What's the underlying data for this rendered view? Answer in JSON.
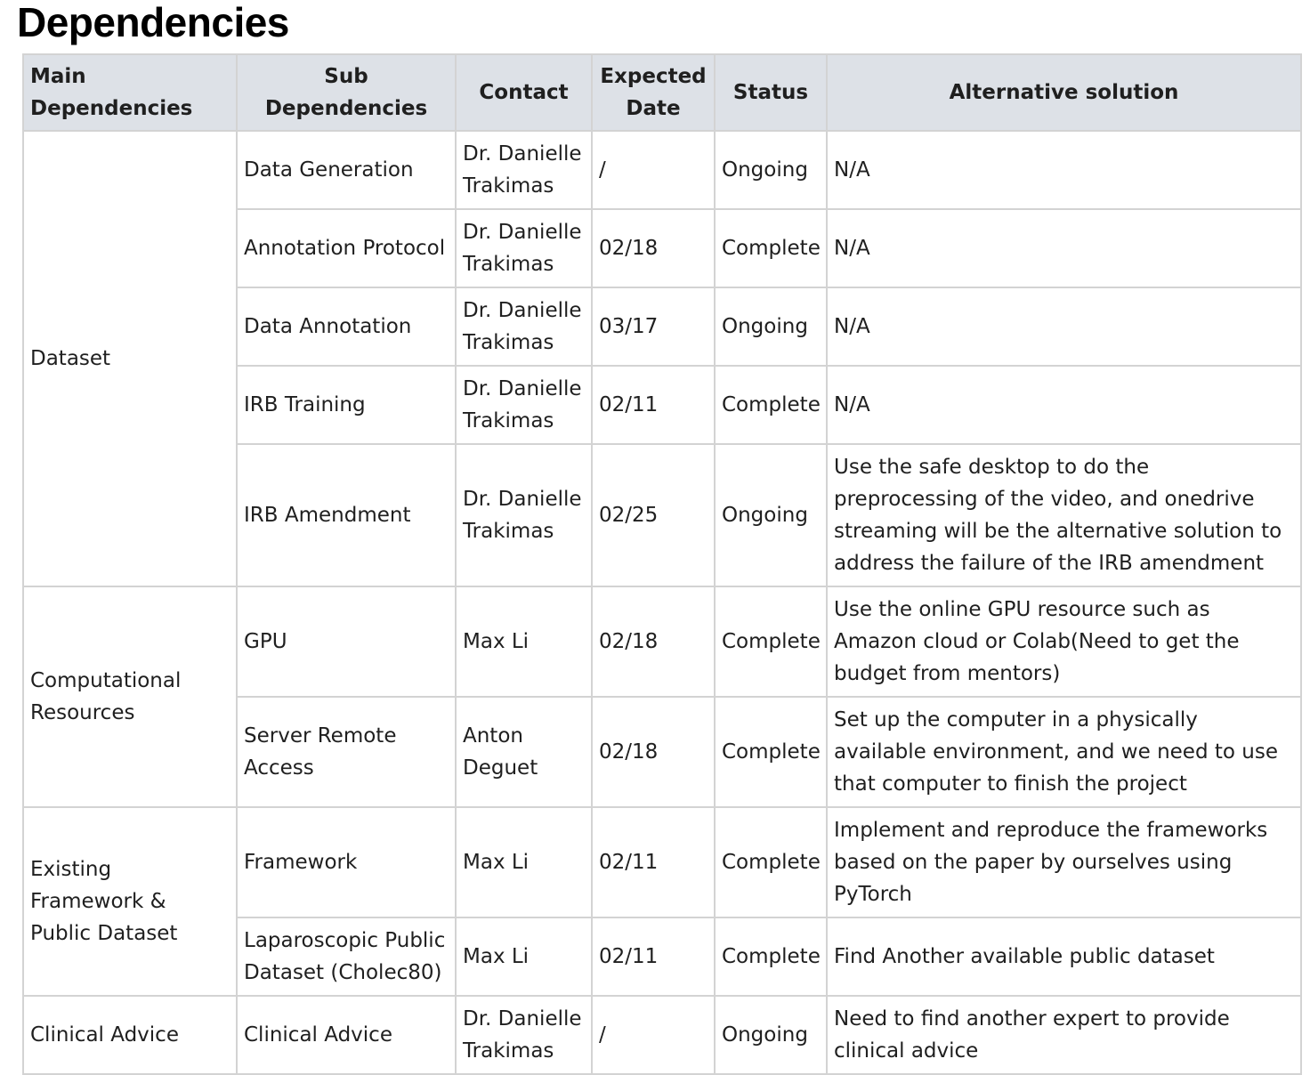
{
  "title": "Dependencies",
  "headers": {
    "main": "Main Dependencies",
    "sub": "Sub Dependencies",
    "contact": "Contact",
    "date": "Expected Date",
    "status": "Status",
    "alternative": "Alternative solution"
  },
  "groups": [
    {
      "main": "Dataset",
      "rows": [
        {
          "sub": "Data Generation",
          "contact": "Dr. Danielle Trakimas",
          "date": "/",
          "status": "Ongoing",
          "alternative": "N/A"
        },
        {
          "sub": "Annotation Protocol",
          "contact": "Dr. Danielle Trakimas",
          "date": "02/18",
          "status": "Complete",
          "alternative": "N/A"
        },
        {
          "sub": "Data Annotation",
          "contact": "Dr. Danielle Trakimas",
          "date": "03/17",
          "status": "Ongoing",
          "alternative": "N/A"
        },
        {
          "sub": "IRB Training",
          "contact": "Dr. Danielle Trakimas",
          "date": "02/11",
          "status": "Complete",
          "alternative": "N/A"
        },
        {
          "sub": "IRB Amendment",
          "contact": "Dr. Danielle Trakimas",
          "date": "02/25",
          "status": "Ongoing",
          "alternative": "Use the safe desktop to do the preprocessing of the video, and onedrive streaming will be the alternative solution to address the failure of the IRB amendment"
        }
      ]
    },
    {
      "main": "Computational Resources",
      "rows": [
        {
          "sub": "GPU",
          "contact": "Max Li",
          "date": "02/18",
          "status": "Complete",
          "alternative": "Use the online GPU resource such as Amazon cloud or Colab(Need to get the budget from mentors)"
        },
        {
          "sub": "Server Remote Access",
          "contact": "Anton Deguet",
          "date": "02/18",
          "status": "Complete",
          "alternative": "Set up the computer in a physically available environment, and we need to use that computer to finish the project"
        }
      ]
    },
    {
      "main": "Existing Framework & Public Dataset",
      "rows": [
        {
          "sub": "Framework",
          "contact": "Max Li",
          "date": "02/11",
          "status": "Complete",
          "alternative": "Implement and reproduce the frameworks based on the paper by ourselves using PyTorch"
        },
        {
          "sub": "Laparoscopic Public Dataset (Cholec80)",
          "contact": "Max Li",
          "date": "02/11",
          "status": "Complete",
          "alternative": "Find Another available public dataset"
        }
      ]
    },
    {
      "main": "Clinical Advice",
      "rows": [
        {
          "sub": "Clinical Advice",
          "contact": "Dr. Danielle Trakimas",
          "date": "/",
          "status": "Ongoing",
          "alternative": "Need to find another expert to provide clinical advice"
        }
      ]
    }
  ]
}
